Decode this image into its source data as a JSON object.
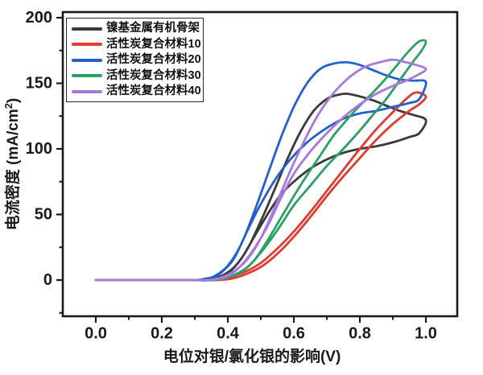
{
  "chart_data": {
    "type": "line",
    "subtype": "cyclic-voltammetry-loops",
    "title": "",
    "xlabel": "电位对银/氯化银的影响(V)",
    "ylabel": "电流密度 (mA/cm²)",
    "ylabel_parts": {
      "pre": "电流密度 (mA/cm",
      "sup": "2",
      "post": ")"
    },
    "xlim": [
      -0.1,
      1.095
    ],
    "ylim": [
      -27.6,
      204.3
    ],
    "grid": false,
    "frame": true,
    "axis_color": "#1a1a1a",
    "x_ticks": {
      "major": [
        0.0,
        0.2,
        0.4,
        0.6,
        0.8,
        1.0
      ],
      "labels": [
        "0.0",
        "0.2",
        "0.4",
        "0.6",
        "0.8",
        "1.0"
      ],
      "minor": [
        0.1,
        0.3,
        0.5,
        0.7,
        0.9
      ]
    },
    "y_ticks": {
      "major": [
        0,
        50,
        100,
        150,
        200
      ],
      "labels": [
        "0",
        "50",
        "100",
        "150",
        "200"
      ],
      "minor": [
        -25,
        25,
        75,
        125,
        175
      ]
    },
    "legend": {
      "position": "top-left",
      "border_color": "#2a2a2a",
      "background": "#ffffff"
    },
    "series": [
      {
        "name": "镍基金属有机骨架",
        "color": "#3a3a3a",
        "points": [
          [
            0,
            0
          ],
          [
            0.1,
            0
          ],
          [
            0.2,
            0
          ],
          [
            0.3,
            0
          ],
          [
            0.34,
            0
          ],
          [
            0.38,
            3
          ],
          [
            0.42,
            10
          ],
          [
            0.46,
            24
          ],
          [
            0.5,
            45
          ],
          [
            0.54,
            68
          ],
          [
            0.58,
            92
          ],
          [
            0.62,
            113
          ],
          [
            0.66,
            129
          ],
          [
            0.7,
            138
          ],
          [
            0.73,
            141
          ],
          [
            0.76,
            142
          ],
          [
            0.8,
            140
          ],
          [
            0.84,
            137
          ],
          [
            0.88,
            133
          ],
          [
            0.92,
            129
          ],
          [
            0.96,
            126
          ],
          [
            1.0,
            122
          ],
          [
            0.98,
            112
          ],
          [
            0.95,
            109
          ],
          [
            0.9,
            105
          ],
          [
            0.85,
            102
          ],
          [
            0.8,
            100
          ],
          [
            0.75,
            97
          ],
          [
            0.7,
            92
          ],
          [
            0.65,
            85
          ],
          [
            0.6,
            75
          ],
          [
            0.56,
            65
          ],
          [
            0.52,
            50
          ],
          [
            0.48,
            33
          ],
          [
            0.44,
            16
          ],
          [
            0.4,
            5
          ],
          [
            0.37,
            1
          ],
          [
            0.34,
            0
          ],
          [
            0.25,
            0
          ],
          [
            0.15,
            0
          ],
          [
            0.05,
            0
          ],
          [
            0,
            0
          ]
        ]
      },
      {
        "name": "活性炭复合材料10",
        "color": "#e13b32",
        "points": [
          [
            0,
            0
          ],
          [
            0.1,
            0
          ],
          [
            0.2,
            0
          ],
          [
            0.3,
            0
          ],
          [
            0.36,
            0
          ],
          [
            0.4,
            2
          ],
          [
            0.45,
            6
          ],
          [
            0.5,
            13
          ],
          [
            0.55,
            24
          ],
          [
            0.6,
            37
          ],
          [
            0.65,
            52
          ],
          [
            0.7,
            68
          ],
          [
            0.75,
            84
          ],
          [
            0.8,
            100
          ],
          [
            0.85,
            115
          ],
          [
            0.9,
            128
          ],
          [
            0.94,
            138
          ],
          [
            0.97,
            143
          ],
          [
            1.0,
            140
          ],
          [
            0.98,
            134
          ],
          [
            0.95,
            129
          ],
          [
            0.9,
            119
          ],
          [
            0.85,
            107
          ],
          [
            0.8,
            93
          ],
          [
            0.75,
            79
          ],
          [
            0.7,
            64
          ],
          [
            0.65,
            48
          ],
          [
            0.6,
            33
          ],
          [
            0.55,
            20
          ],
          [
            0.5,
            10
          ],
          [
            0.45,
            4
          ],
          [
            0.41,
            1
          ],
          [
            0.37,
            0
          ],
          [
            0.3,
            0
          ],
          [
            0.2,
            0
          ],
          [
            0.1,
            0
          ],
          [
            0,
            0
          ]
        ]
      },
      {
        "name": "活性炭复合材料20",
        "color": "#2260cf",
        "points": [
          [
            0,
            0
          ],
          [
            0.1,
            0
          ],
          [
            0.2,
            0
          ],
          [
            0.3,
            0
          ],
          [
            0.33,
            1
          ],
          [
            0.36,
            3
          ],
          [
            0.4,
            11
          ],
          [
            0.44,
            27
          ],
          [
            0.48,
            52
          ],
          [
            0.52,
            80
          ],
          [
            0.56,
            108
          ],
          [
            0.6,
            132
          ],
          [
            0.64,
            150
          ],
          [
            0.68,
            161
          ],
          [
            0.72,
            165
          ],
          [
            0.76,
            166
          ],
          [
            0.8,
            164
          ],
          [
            0.84,
            160
          ],
          [
            0.88,
            156
          ],
          [
            0.92,
            153
          ],
          [
            0.96,
            152
          ],
          [
            1.0,
            151
          ],
          [
            0.98,
            138
          ],
          [
            0.95,
            135
          ],
          [
            0.9,
            132
          ],
          [
            0.85,
            129
          ],
          [
            0.8,
            127
          ],
          [
            0.75,
            123
          ],
          [
            0.7,
            116
          ],
          [
            0.65,
            107
          ],
          [
            0.6,
            95
          ],
          [
            0.55,
            79
          ],
          [
            0.5,
            58
          ],
          [
            0.46,
            38
          ],
          [
            0.42,
            17
          ],
          [
            0.39,
            8
          ],
          [
            0.36,
            2
          ],
          [
            0.33,
            0
          ],
          [
            0.25,
            0
          ],
          [
            0.15,
            0
          ],
          [
            0.05,
            0
          ],
          [
            0,
            0
          ]
        ]
      },
      {
        "name": "活性炭复合材料30",
        "color": "#2aa264",
        "points": [
          [
            0,
            0
          ],
          [
            0.1,
            0
          ],
          [
            0.2,
            0
          ],
          [
            0.3,
            0
          ],
          [
            0.36,
            0
          ],
          [
            0.4,
            2
          ],
          [
            0.44,
            6
          ],
          [
            0.48,
            15
          ],
          [
            0.52,
            30
          ],
          [
            0.56,
            47
          ],
          [
            0.6,
            64
          ],
          [
            0.64,
            80
          ],
          [
            0.68,
            95
          ],
          [
            0.72,
            110
          ],
          [
            0.76,
            122
          ],
          [
            0.8,
            133
          ],
          [
            0.84,
            143
          ],
          [
            0.88,
            154
          ],
          [
            0.92,
            166
          ],
          [
            0.95,
            175
          ],
          [
            0.98,
            182
          ],
          [
            1.0,
            182
          ],
          [
            0.99,
            176
          ],
          [
            0.96,
            166
          ],
          [
            0.92,
            152
          ],
          [
            0.88,
            138
          ],
          [
            0.84,
            126
          ],
          [
            0.8,
            114
          ],
          [
            0.75,
            100
          ],
          [
            0.7,
            87
          ],
          [
            0.65,
            72
          ],
          [
            0.6,
            57
          ],
          [
            0.55,
            38
          ],
          [
            0.5,
            21
          ],
          [
            0.46,
            10
          ],
          [
            0.42,
            4
          ],
          [
            0.38,
            1
          ],
          [
            0.35,
            0
          ],
          [
            0.25,
            0
          ],
          [
            0.15,
            0
          ],
          [
            0.05,
            0
          ],
          [
            0,
            0
          ]
        ]
      },
      {
        "name": "活性炭复合材料40",
        "color": "#a878dc",
        "points": [
          [
            0,
            0
          ],
          [
            0.1,
            0
          ],
          [
            0.2,
            0
          ],
          [
            0.3,
            0
          ],
          [
            0.34,
            0
          ],
          [
            0.38,
            2
          ],
          [
            0.42,
            7
          ],
          [
            0.46,
            16
          ],
          [
            0.5,
            32
          ],
          [
            0.54,
            54
          ],
          [
            0.58,
            78
          ],
          [
            0.62,
            100
          ],
          [
            0.66,
            120
          ],
          [
            0.7,
            136
          ],
          [
            0.74,
            148
          ],
          [
            0.78,
            157
          ],
          [
            0.82,
            163
          ],
          [
            0.86,
            166
          ],
          [
            0.9,
            168
          ],
          [
            0.94,
            166
          ],
          [
            0.97,
            164
          ],
          [
            1.0,
            161
          ],
          [
            0.98,
            157
          ],
          [
            0.94,
            152
          ],
          [
            0.9,
            148
          ],
          [
            0.85,
            142
          ],
          [
            0.8,
            134
          ],
          [
            0.75,
            124
          ],
          [
            0.7,
            112
          ],
          [
            0.65,
            98
          ],
          [
            0.6,
            81
          ],
          [
            0.56,
            62
          ],
          [
            0.52,
            41
          ],
          [
            0.48,
            24
          ],
          [
            0.44,
            11
          ],
          [
            0.4,
            3
          ],
          [
            0.37,
            1
          ],
          [
            0.34,
            0
          ],
          [
            0.25,
            0
          ],
          [
            0.15,
            0
          ],
          [
            0.05,
            0
          ],
          [
            0,
            0
          ]
        ]
      }
    ]
  }
}
